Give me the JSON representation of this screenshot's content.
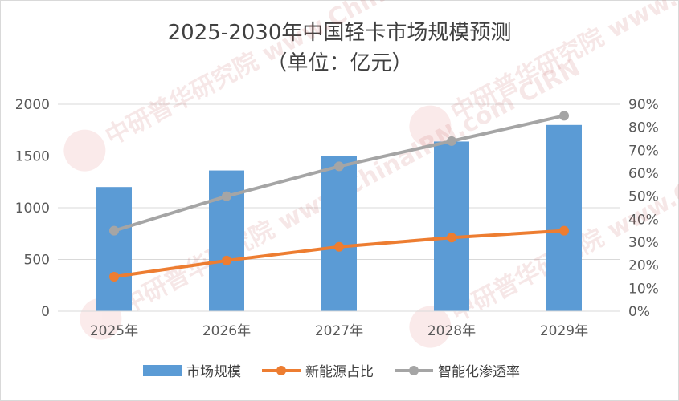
{
  "chart_data": {
    "type": "bar",
    "title": "2025-2030年中国轻卡市场规模预测",
    "subtitle": "（单位：亿元）",
    "categories": [
      "2025年",
      "2026年",
      "2027年",
      "2028年",
      "2029年"
    ],
    "series": [
      {
        "name": "市场规模",
        "type": "bar",
        "axis": "left",
        "color": "#5b9bd5",
        "values": [
          1200,
          1360,
          1500,
          1640,
          1800
        ]
      },
      {
        "name": "新能源占比",
        "type": "line",
        "axis": "right",
        "color": "#ed7d31",
        "values": [
          0.15,
          0.22,
          0.28,
          0.32,
          0.35
        ]
      },
      {
        "name": "智能化渗透率",
        "type": "line",
        "axis": "right",
        "color": "#a5a5a5",
        "values": [
          0.35,
          0.5,
          0.63,
          0.74,
          0.85
        ]
      }
    ],
    "ylim_left": [
      0,
      2000
    ],
    "yticks_left": [
      "0",
      "500",
      "1000",
      "1500",
      "2000"
    ],
    "ylim_right": [
      0,
      0.9
    ],
    "yticks_right": [
      "0%",
      "10%",
      "20%",
      "30%",
      "40%",
      "50%",
      "60%",
      "70%",
      "80%",
      "90%"
    ],
    "grid": true,
    "legend_position": "bottom",
    "watermark": "中研普华研究院 www.ChinaIRN.com CIRN"
  }
}
